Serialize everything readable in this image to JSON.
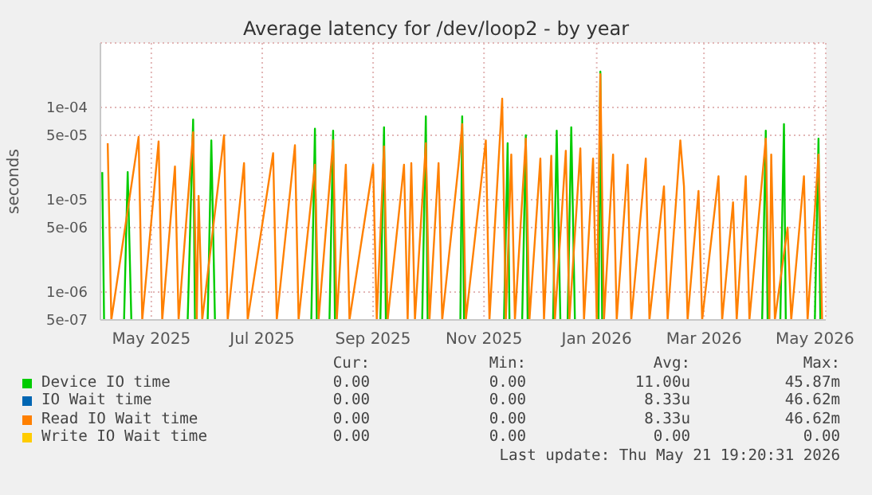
{
  "chart_data": {
    "type": "line",
    "title": "Average latency for /dev/loop2 - by year",
    "ylabel": "seconds",
    "log": "y",
    "grid": true,
    "legend": "bottom",
    "marker": "none",
    "line_style": "solid",
    "xlim": [
      "2025-04-18",
      "2026-05-22"
    ],
    "xticks": [
      {
        "value": "2025-05-16",
        "label": "May 2025"
      },
      {
        "value": "2025-07-16",
        "label": "Jul 2025"
      },
      {
        "value": "2025-09-15",
        "label": "Sep 2025"
      },
      {
        "value": "2025-11-15",
        "label": "Nov 2025"
      },
      {
        "value": "2026-01-16",
        "label": "Jan 2026"
      },
      {
        "value": "2026-03-16",
        "label": "Mar 2026"
      },
      {
        "value": "2026-05-16",
        "label": "May 2026"
      }
    ],
    "ylim": [
      5e-07,
      0.0005
    ],
    "yticks": [
      {
        "value": 5e-07,
        "label": "5e-07"
      },
      {
        "value": 1e-06,
        "label": "1e-06"
      },
      {
        "value": 5e-06,
        "label": "5e-06"
      },
      {
        "value": 1e-05,
        "label": "1e-05"
      },
      {
        "value": 5e-05,
        "label": "5e-05"
      },
      {
        "value": 0.0001,
        "label": "1e-04"
      }
    ],
    "series": [
      {
        "name": "Device IO time",
        "color": "#00cc00",
        "x": [
          "2025-04-19",
          "2025-04-20",
          "2025-04-21",
          "2025-05-01",
          "2025-05-03",
          "2025-05-05",
          "2025-05-06",
          "2025-06-05",
          "2025-06-08",
          "2025-06-09",
          "2025-06-10",
          "2025-06-16",
          "2025-06-18",
          "2025-06-20",
          "2025-06-21",
          "2025-08-12",
          "2025-08-14",
          "2025-08-15",
          "2025-08-16",
          "2025-08-22",
          "2025-08-24",
          "2025-08-25",
          "2025-08-26",
          "2025-09-19",
          "2025-09-21",
          "2025-09-22",
          "2025-09-23",
          "2025-10-12",
          "2025-10-14",
          "2025-10-15",
          "2025-10-16",
          "2025-11-02",
          "2025-11-03",
          "2025-11-04",
          "2025-11-05",
          "2025-11-26",
          "2025-11-28",
          "2025-11-29",
          "2025-11-30",
          "2025-12-06",
          "2025-12-08",
          "2025-12-09",
          "2025-12-10",
          "2025-12-23",
          "2025-12-25",
          "2025-12-27",
          "2025-12-28",
          "2025-12-31",
          "2026-01-02",
          "2026-01-04",
          "2026-01-05",
          "2026-01-17",
          "2026-01-18",
          "2026-01-19",
          "2026-01-20",
          "2026-04-17",
          "2026-04-19",
          "2026-04-20",
          "2026-04-21",
          "2026-04-27",
          "2026-04-29",
          "2026-04-30",
          "2026-05-01",
          "2026-05-16",
          "2026-05-18",
          "2026-05-19"
        ],
        "values": [
          2e-05,
          5e-07,
          null,
          5e-07,
          2e-05,
          5e-07,
          null,
          5e-07,
          7.4e-05,
          5e-07,
          null,
          5e-07,
          4.4e-05,
          5e-07,
          null,
          5e-07,
          5.9e-05,
          5e-07,
          null,
          5e-07,
          5.6e-05,
          5e-07,
          null,
          5e-07,
          6.1e-05,
          5e-07,
          null,
          5e-07,
          8e-05,
          5e-07,
          null,
          5e-07,
          8e-05,
          5e-07,
          null,
          5e-07,
          4.1e-05,
          5e-07,
          null,
          5e-07,
          5e-05,
          5e-07,
          null,
          5e-07,
          5.6e-05,
          5e-07,
          null,
          5e-07,
          6.1e-05,
          5e-07,
          null,
          5e-07,
          0.000245,
          5e-07,
          null,
          5e-07,
          5.6e-05,
          5e-07,
          null,
          5e-07,
          6.6e-05,
          5e-07,
          null,
          5e-07,
          4.6e-05,
          5e-07
        ]
      },
      {
        "name": "IO Wait time",
        "color": "#0066b3"
      },
      {
        "name": "Read IO Wait time",
        "color": "#ff8000",
        "x": [
          "2025-04-22",
          "2025-04-24",
          "2025-05-09",
          "2025-05-11",
          "2025-05-20",
          "2025-05-22",
          "2025-05-29",
          "2025-05-31",
          "2025-06-08",
          "2025-06-10",
          "2025-06-11",
          "2025-06-13",
          "2025-06-25",
          "2025-06-27",
          "2025-07-06",
          "2025-07-08",
          "2025-07-22",
          "2025-07-24",
          "2025-08-03",
          "2025-08-05",
          "2025-08-14",
          "2025-08-16",
          "2025-08-24",
          "2025-08-26",
          "2025-08-31",
          "2025-09-02",
          "2025-09-15",
          "2025-09-17",
          "2025-09-21",
          "2025-09-23",
          "2025-10-02",
          "2025-10-04",
          "2025-10-06",
          "2025-10-08",
          "2025-10-14",
          "2025-10-16",
          "2025-10-21",
          "2025-10-23",
          "2025-11-01",
          "2025-11-03",
          "2025-11-05",
          "2025-11-16",
          "2025-11-18",
          "2025-11-25",
          "2025-11-27",
          "2025-11-30",
          "2025-12-02",
          "2025-12-08",
          "2025-12-10",
          "2025-12-16",
          "2025-12-18",
          "2025-12-22",
          "2025-12-24",
          "2025-12-30",
          "2026-01-01",
          "2026-01-07",
          "2026-01-09",
          "2026-01-14",
          "2026-01-16",
          "2026-01-18",
          "2026-01-20",
          "2026-01-25",
          "2026-01-27",
          "2026-02-02",
          "2026-02-04",
          "2026-02-12",
          "2026-02-14",
          "2026-02-22",
          "2026-02-24",
          "2026-03-03",
          "2026-03-05",
          "2026-03-07",
          "2026-03-13",
          "2026-03-15",
          "2026-03-24",
          "2026-03-26",
          "2026-04-01",
          "2026-04-03",
          "2026-04-08",
          "2026-04-10",
          "2026-04-19",
          "2026-04-21",
          "2026-04-22",
          "2026-04-24",
          "2026-05-01",
          "2026-05-03",
          "2026-05-10",
          "2026-05-12",
          "2026-05-18",
          "2026-05-20"
        ],
        "values": [
          4.1e-05,
          5e-07,
          4.8e-05,
          5e-07,
          4.3e-05,
          5e-07,
          2.3e-05,
          5e-07,
          5.4e-05,
          5e-07,
          1.1e-05,
          5e-07,
          5e-05,
          5e-07,
          2.5e-05,
          5e-07,
          3.2e-05,
          5e-07,
          3.9e-05,
          5e-07,
          2.4e-05,
          5e-07,
          4.4e-05,
          5e-07,
          2.4e-05,
          5e-07,
          2.4e-05,
          5e-07,
          3.8e-05,
          5e-07,
          2.4e-05,
          5e-07,
          2.5e-05,
          5e-07,
          4.1e-05,
          5e-07,
          2.5e-05,
          5e-07,
          2.4e-05,
          6.6e-05,
          5e-07,
          4.4e-05,
          5e-07,
          0.000125,
          5e-07,
          3.1e-05,
          5e-07,
          4.6e-05,
          5e-07,
          2.8e-05,
          5e-07,
          3e-05,
          5e-07,
          3.4e-05,
          5e-07,
          3.6e-05,
          5e-07,
          2.8e-05,
          5e-07,
          0.00023,
          5e-07,
          3.1e-05,
          5e-07,
          2.4e-05,
          5e-07,
          2.8e-05,
          5e-07,
          1.4e-05,
          5e-07,
          4.4e-05,
          1.4e-05,
          5e-07,
          1.25e-05,
          5e-07,
          1.8e-05,
          5e-07,
          9.4e-06,
          5e-07,
          1.8e-05,
          5e-07,
          4.6e-05,
          5e-07,
          3.1e-05,
          5e-07,
          5e-06,
          5e-07,
          1.8e-05,
          5e-07,
          3.1e-05,
          5e-07
        ]
      },
      {
        "name": "Write IO Wait time",
        "color": "#ffcc00"
      }
    ],
    "annotations": [
      "Cur:",
      "Min:",
      "Avg:",
      "Max:",
      "0.00",
      "0.00",
      "11.00u",
      "45.87m",
      "0.00",
      "0.00",
      "8.33u",
      "46.62m",
      "0.00",
      "0.00",
      "8.33u",
      "46.62m",
      "0.00",
      "0.00",
      "0.00",
      "0.00",
      "Last update: Thu May 21 19:20:31 2026"
    ]
  }
}
